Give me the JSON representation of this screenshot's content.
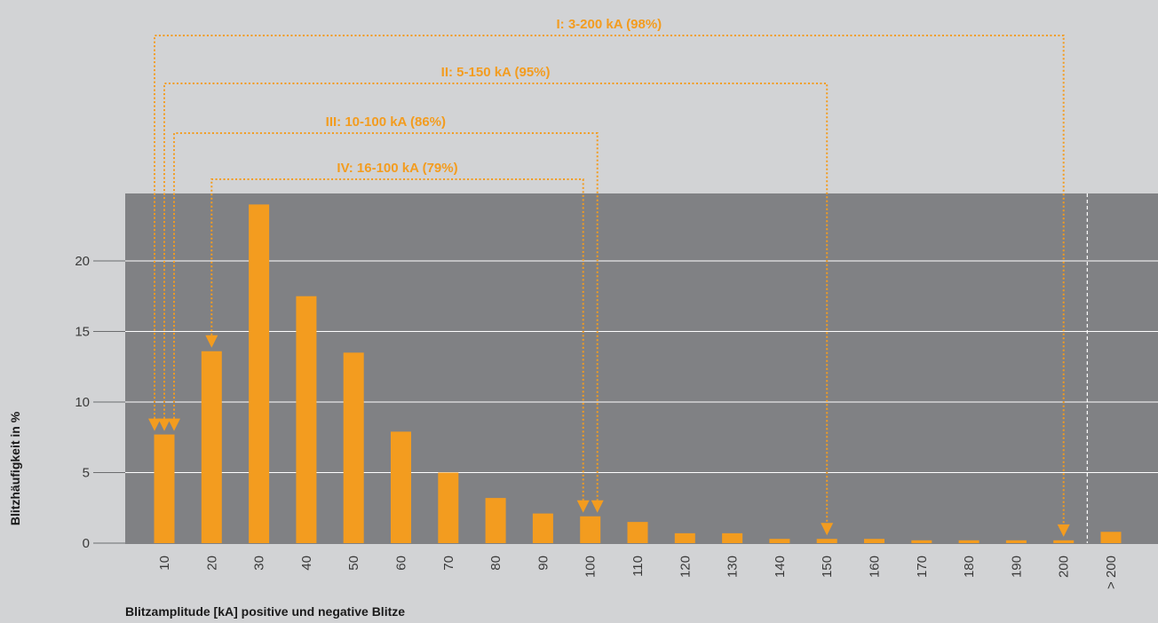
{
  "chart_data": {
    "type": "bar",
    "categories": [
      "10",
      "20",
      "30",
      "40",
      "50",
      "60",
      "70",
      "80",
      "90",
      "100",
      "110",
      "120",
      "130",
      "140",
      "150",
      "160",
      "170",
      "180",
      "190",
      "200",
      "> 200"
    ],
    "values": [
      7.7,
      13.6,
      24.0,
      17.5,
      13.5,
      7.9,
      5.0,
      3.2,
      2.1,
      1.9,
      1.5,
      0.7,
      0.7,
      0.3,
      0.3,
      0.3,
      0.2,
      0.2,
      0.2,
      0.2,
      0.8
    ],
    "xlabel": "Blitzamplitude [kA] positive und negative Blitze",
    "ylabel": "Blitzhäufigkeit in %",
    "ylim": [
      0,
      25
    ],
    "yticks": [
      0,
      5,
      10,
      15,
      20
    ],
    "grid": true,
    "colors": {
      "bar": "#f39c1f",
      "plot_bg": "#808184",
      "page_bg": "#d2d3d5",
      "grid": "#ffffff",
      "annotation": "#f39c1f"
    },
    "annotations": [
      {
        "label": "I: 3-200 kA (98%)",
        "from": "10",
        "to": "200"
      },
      {
        "label": "II: 5-150 kA (95%)",
        "from": "10",
        "to": "150"
      },
      {
        "label": "III: 10-100 kA (86%)",
        "from": "10",
        "to": "100"
      },
      {
        "label": "IV: 16-100 kA (79%)",
        "from": "20",
        "to": "100"
      }
    ]
  }
}
